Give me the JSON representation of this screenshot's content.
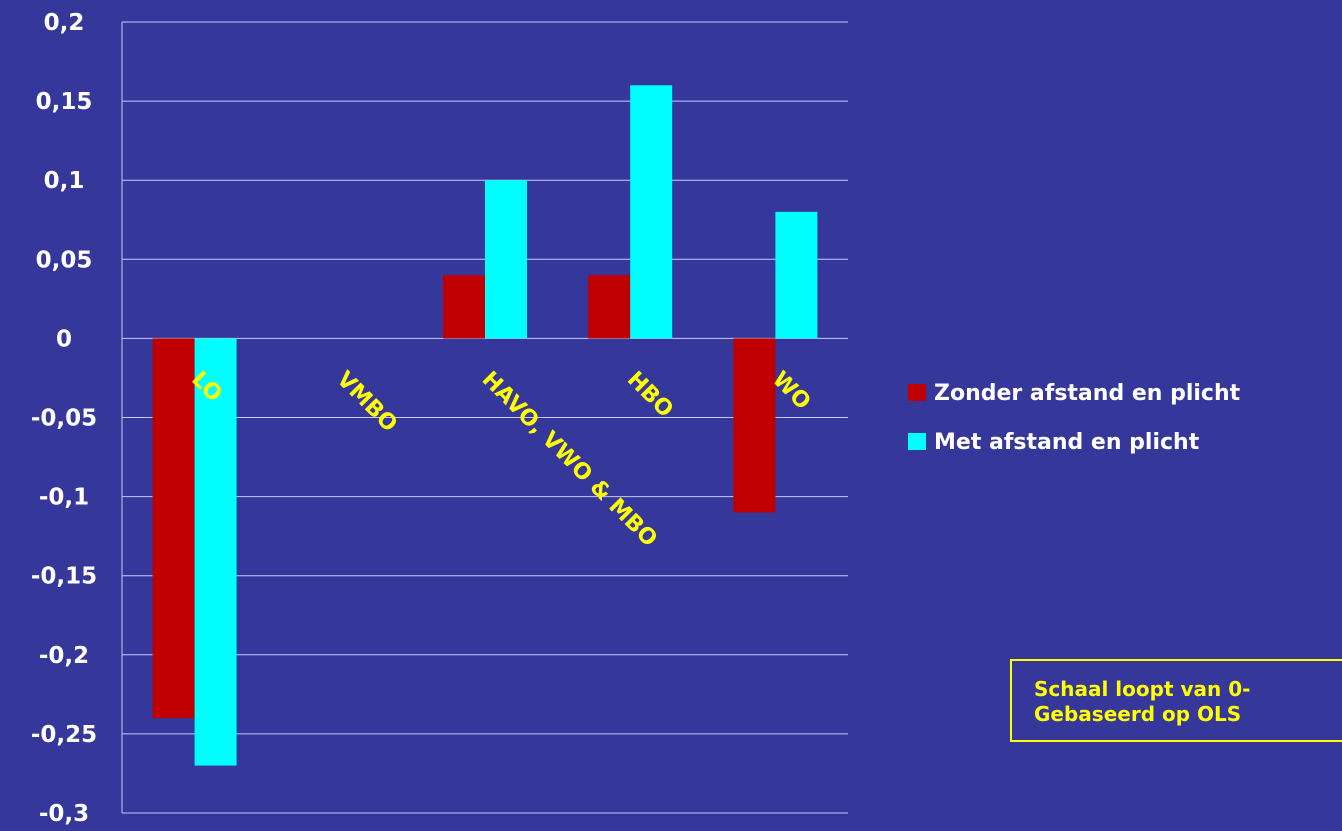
{
  "chart_data": {
    "type": "bar",
    "title": "",
    "xlabel": "",
    "ylabel": "",
    "ylim": [
      -0.3,
      0.2
    ],
    "grid": true,
    "legend_position": "right",
    "categories": [
      "LO",
      "VMBO",
      "HAVO, VWO & MBO",
      "HBO",
      "WO"
    ],
    "y_ticks": [
      "0,2",
      "0,15",
      "0,1",
      "0,05",
      "0",
      "-0,05",
      "-0,1",
      "-0,15",
      "-0,2",
      "-0,25",
      "-0,3"
    ],
    "series": [
      {
        "name": "Zonder afstand en plicht",
        "color": "#c00000",
        "values": [
          -0.24,
          0,
          0.04,
          0.04,
          -0.11
        ]
      },
      {
        "name": "Met afstand en plicht",
        "color": "#00ffff",
        "values": [
          -0.27,
          0,
          0.1,
          0.16,
          0.08
        ]
      }
    ]
  },
  "note": {
    "line1": "Schaal loopt van 0-",
    "line2": "Gebaseerd op OLS"
  },
  "colors": {
    "background": "#36379a",
    "gridline": "#c8c8ff",
    "category_label": "#ffff00",
    "note": "#ffff00"
  }
}
